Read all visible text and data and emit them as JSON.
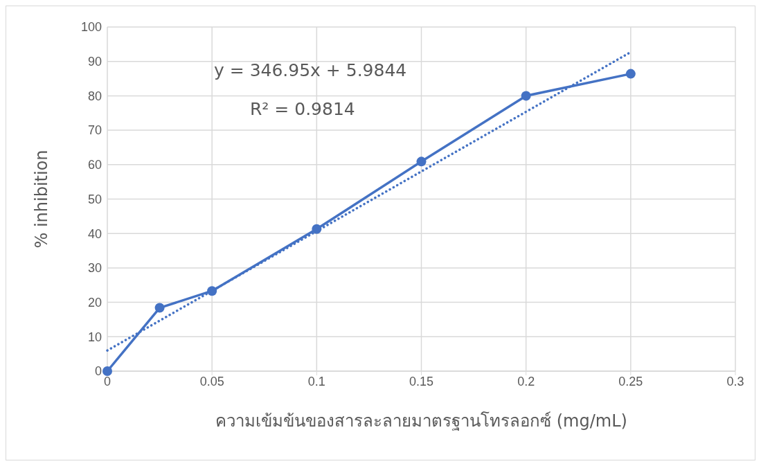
{
  "chart_data": {
    "type": "line",
    "xlabel": "ความเข้มข้นของสารละลายมาตรฐานโทรลอกซ์ (mg/mL)",
    "ylabel": "% inhibition",
    "x": [
      0,
      0.025,
      0.05,
      0.1,
      0.15,
      0.2,
      0.25
    ],
    "series": [
      {
        "color": "#4472c4",
        "values": [
          0,
          18.4,
          23.3,
          41.3,
          60.9,
          80.0,
          86.4
        ],
        "marker": "circle",
        "line_style": "solid"
      },
      {
        "type": "line",
        "x": [
          0,
          0.25
        ],
        "color": "#4472c4",
        "values": [
          6.0,
          92.7
        ],
        "marker": "none",
        "line_style": "dotted"
      }
    ],
    "annotations": [
      "y = 346.95x + 5.9844",
      "R² = 0.9814"
    ],
    "xlim": [
      0,
      0.3
    ],
    "xticks": [
      0,
      0.05,
      0.1,
      0.15,
      0.2,
      0.25,
      0.3
    ],
    "ylim": [
      0,
      100
    ],
    "yticks": [
      0,
      10,
      20,
      30,
      40,
      50,
      60,
      70,
      80,
      90,
      100
    ],
    "grid": true
  }
}
